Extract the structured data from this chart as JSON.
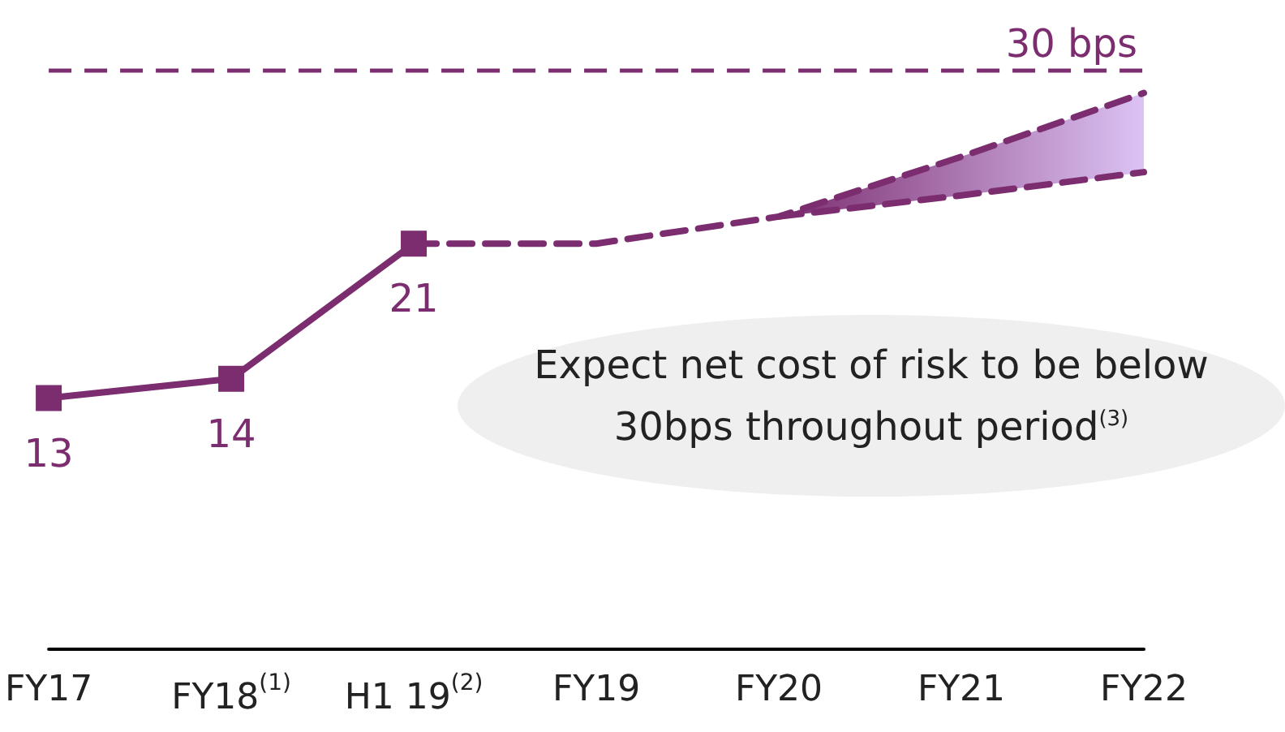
{
  "chart_data": {
    "type": "line",
    "categories": [
      "FY17",
      "FY18$^{(1)}$",
      "H1 19$^{(2)}$",
      "FY19",
      "FY20",
      "FY21",
      "FY22"
    ],
    "series": [
      {
        "color": "#7b2d6f",
        "values": [
          13,
          14,
          21,
          null,
          null,
          null,
          null
        ],
        "value_labels": [
          "13",
          "14",
          "21",
          null,
          null,
          null,
          null
        ],
        "marker": "square",
        "line_style": "solid"
      },
      {
        "color": "#7b2d6f",
        "values": [
          null,
          null,
          21,
          21,
          22.4,
          25.5,
          28.8
        ],
        "marker": "none",
        "line_style": "dashed",
        "lower": [
          null,
          null,
          null,
          null,
          22.4,
          23.5,
          24.7
        ],
        "upper": [
          null,
          null,
          null,
          null,
          22.4,
          25.5,
          28.8
        ]
      },
      {
        "color": "#7b2d6f",
        "values": [
          null,
          null,
          null,
          null,
          22.4,
          23.5,
          24.7
        ],
        "marker": "none",
        "line_style": "dashed"
      }
    ],
    "tick_labels": "x",
    "grid": false,
    "ref_lines": [
      {
        "axis": "y",
        "value": 30,
        "label": "30 bps",
        "color": "#7b2d6f",
        "line_style": "dashed"
      }
    ],
    "annotations": [
      "Expect net cost of risk to be below 30bps throughout period$^{(3)}$"
    ]
  }
}
